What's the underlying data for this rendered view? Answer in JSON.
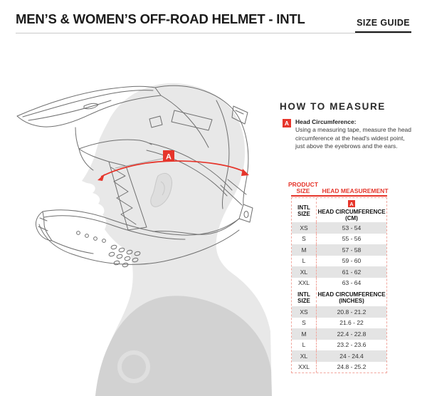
{
  "header": {
    "title": "MEN’S & WOMEN’S OFF-ROAD HELMET - INTL",
    "size_guide_label": "SIZE GUIDE"
  },
  "diagram": {
    "marker": "A"
  },
  "how_to_measure": {
    "heading": "HOW TO MEASURE",
    "marker": "A",
    "label": "Head Circumference:",
    "description": "Using a measuring tape, measure the head circumference at the head's widest point, just above the eyebrows and the ears."
  },
  "size_table": {
    "col_product": "PRODUCT SIZE",
    "col_measurement": "HEAD MEASUREMENT",
    "sections": [
      {
        "size_label": "INTL SIZE",
        "marker": "A",
        "measure_label": "HEAD CIRCUMFERENCE (CM)",
        "rows": [
          {
            "size": "XS",
            "range": "53 - 54"
          },
          {
            "size": "S",
            "range": "55 - 56"
          },
          {
            "size": "M",
            "range": "57 - 58"
          },
          {
            "size": "L",
            "range": "59 - 60"
          },
          {
            "size": "XL",
            "range": "61 - 62"
          },
          {
            "size": "XXL",
            "range": "63 - 64"
          }
        ]
      },
      {
        "size_label": "INTL SIZE",
        "measure_label": "HEAD CIRCUMFERENCE (INCHES)",
        "rows": [
          {
            "size": "XS",
            "range": "20.8 - 21.2"
          },
          {
            "size": "S",
            "range": "21.6 - 22"
          },
          {
            "size": "M",
            "range": "22.4 - 22.8"
          },
          {
            "size": "L",
            "range": "23.2 - 23.6"
          },
          {
            "size": "XL",
            "range": "24 - 24.4"
          },
          {
            "size": "XXL",
            "range": "24.8 - 25.2"
          }
        ]
      }
    ]
  },
  "colors": {
    "accent_red": "#e6352b",
    "row_alt_gray": "#e4e4e4",
    "dashed_border": "#f2a79e"
  }
}
